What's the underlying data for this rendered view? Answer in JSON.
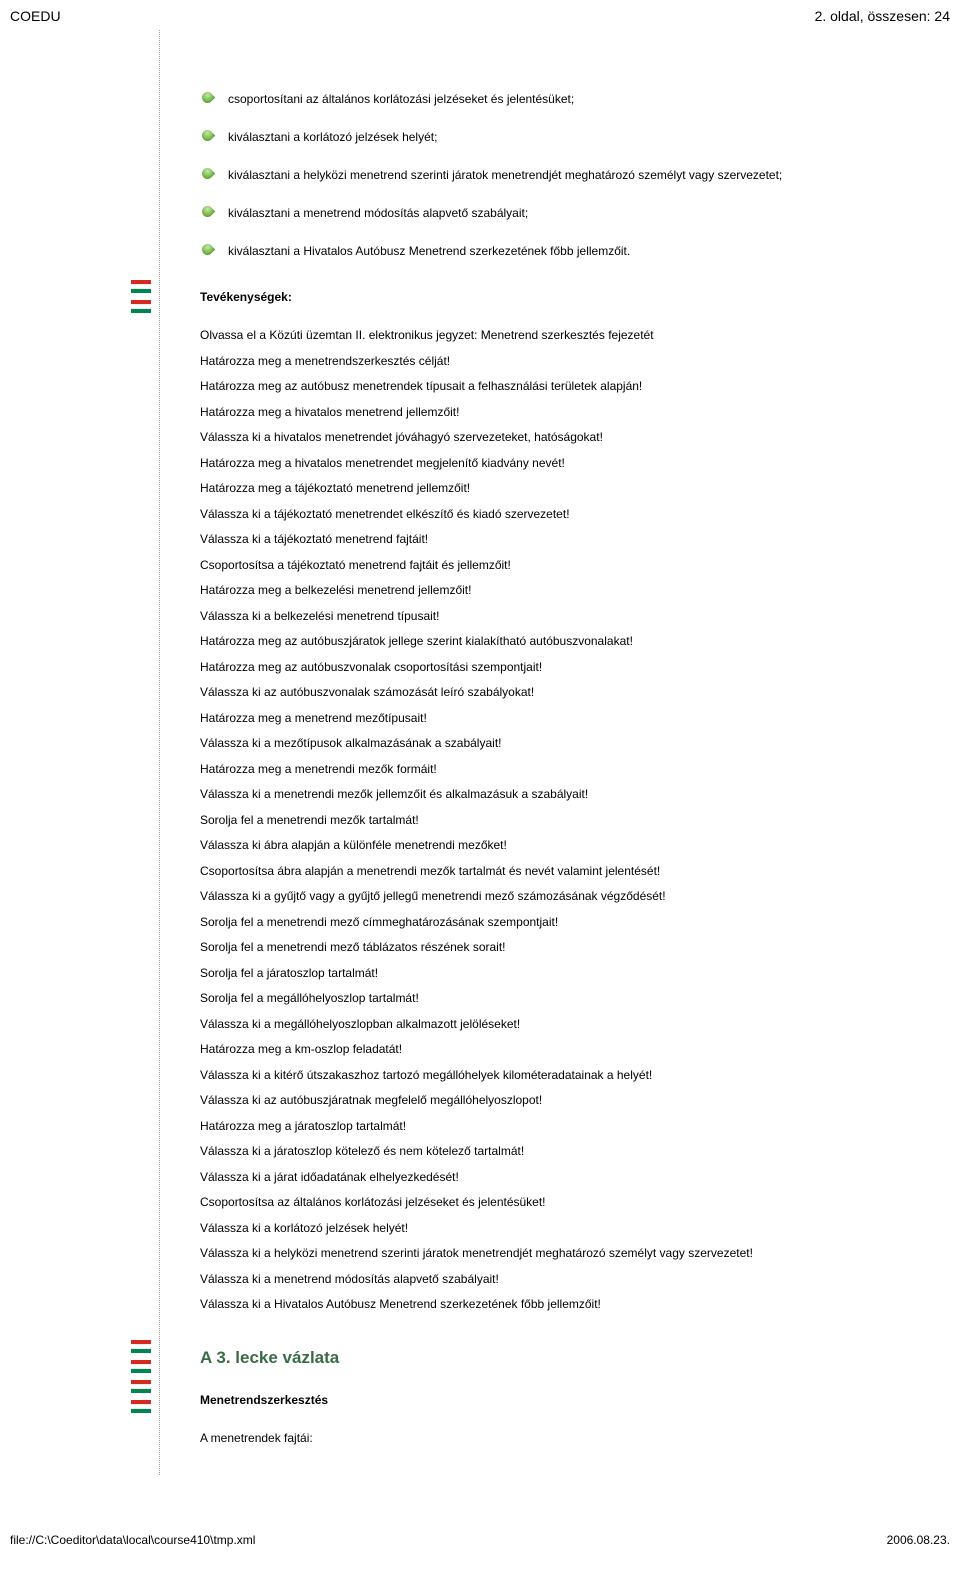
{
  "header": {
    "site": "COEDU",
    "pageinfo": "2. oldal, összesen: 24"
  },
  "objectives": [
    "csoportosítani az általános korlátozási jelzéseket és jelentésüket;",
    "kiválasztani a korlátozó jelzések helyét;",
    "kiválasztani a helyközi menetrend szerinti járatok menetrendjét meghatározó személyt vagy szervezetet;",
    "kiválasztani a menetrend módosítás alapvető szabályait;",
    "kiválasztani a Hivatalos Autóbusz Menetrend szerkezetének főbb jellemzőit."
  ],
  "activities_heading": "Tevékenységek:",
  "activities_intro": "Olvassa el a Közúti üzemtan II. elektronikus jegyzet: Menetrend szerkesztés fejezetét",
  "tasks": [
    "Határozza meg a menetrendszerkesztés célját!",
    "Határozza meg az autóbusz menetrendek típusait a felhasználási területek alapján!",
    "Határozza meg a hivatalos menetrend jellemzőit!",
    "Válassza ki a hivatalos menetrendet jóváhagyó szervezeteket, hatóságokat!",
    "Határozza meg a hivatalos menetrendet megjelenítő kiadvány nevét!",
    "Határozza meg a tájékoztató menetrend jellemzőit!",
    "Válassza ki a tájékoztató menetrendet elkészítő és kiadó szervezetet!",
    "Válassza ki a tájékoztató menetrend fajtáit!",
    "Csoportosítsa a tájékoztató menetrend fajtáit és jellemzőit!",
    "Határozza meg a belkezelési menetrend jellemzőit!",
    "Válassza ki a belkezelési menetrend típusait!",
    "Határozza meg az autóbuszjáratok jellege szerint kialakítható autóbuszvonalakat!",
    "Határozza meg az autóbuszvonalak csoportosítási szempontjait!",
    "Válassza ki az autóbuszvonalak számozását leíró szabályokat!",
    "Határozza meg a menetrend mezőtípusait!",
    "Válassza ki a mezőtípusok alkalmazásának a szabályait!",
    "Határozza meg a menetrendi mezők formáit!",
    "Válassza ki a menetrendi mezők jellemzőit és alkalmazásuk a szabályait!",
    "Sorolja fel a menetrendi mezők tartalmát!",
    "Válassza ki ábra alapján a különféle menetrendi mezőket!",
    "Csoportosítsa ábra alapján a menetrendi mezők tartalmát és nevét valamint jelentését!",
    "Válassza ki a gyűjtő vagy a gyűjtő jellegű menetrendi mező számozásának végződését!",
    "Sorolja fel a menetrendi mező címmeghatározásának szempontjait!",
    "Sorolja fel a menetrendi mező táblázatos részének sorait!",
    "Sorolja fel a járatoszlop tartalmát!",
    "Sorolja fel a megállóhelyoszlop tartalmát!",
    "Válassza ki a megállóhelyoszlopban alkalmazott jelöléseket!",
    "Határozza meg a km-oszlop feladatát!",
    "Válassza ki a kitérő útszakaszhoz tartozó megállóhelyek kilométeradatainak a helyét!",
    "Válassza ki az autóbuszjáratnak megfelelő megállóhelyoszlopot!",
    "Határozza meg a járatoszlop tartalmát!",
    "Válassza ki a járatoszlop kötelező és nem kötelező tartalmát!",
    "Válassza ki a járat időadatának elhelyezkedését!",
    "Csoportosítsa az általános korlátozási jelzéseket és jelentésüket!",
    "Válassza ki a korlátozó jelzések helyét!",
    "Válassza ki a helyközi menetrend szerinti járatok menetrendjét meghatározó személyt vagy szervezetet!",
    "Válassza ki a menetrend módosítás alapvető szabályait!",
    "Válassza ki a Hivatalos Autóbusz Menetrend szerkezetének főbb jellemzőit!"
  ],
  "lesson_heading": "A 3. lecke vázlata",
  "lesson_sub": "Menetrendszerkesztés",
  "lesson_line": "A menetrendek fajtái:",
  "footer": {
    "path": "file://C:\\Coeditor\\data\\local\\course410\\tmp.xml",
    "date": "2006.08.23."
  }
}
